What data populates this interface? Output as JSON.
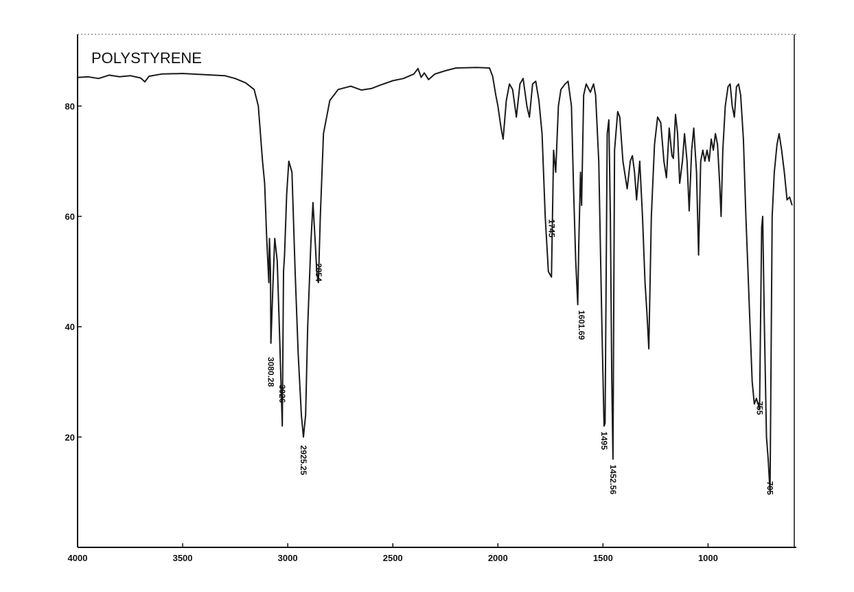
{
  "chart_data": {
    "type": "line",
    "title": "POLYSTYRENE",
    "xlabel": "",
    "ylabel": "",
    "x_reversed": true,
    "xlim": [
      4000,
      580
    ],
    "ylim": [
      0,
      93
    ],
    "grid": false,
    "x_ticks": [
      4000,
      3500,
      3000,
      2500,
      2000,
      1500,
      1000
    ],
    "x_tick_labels": [
      "4000",
      "3500",
      "3000",
      "2500",
      "2000",
      "1500",
      "1000"
    ],
    "y_ticks": [
      20,
      40,
      60,
      80
    ],
    "y_tick_labels": [
      "20",
      "40",
      "60",
      "80"
    ],
    "series": [
      {
        "points": [
          [
            4000,
            85.2
          ],
          [
            3950,
            85.3
          ],
          [
            3900,
            85.0
          ],
          [
            3850,
            85.6
          ],
          [
            3800,
            85.3
          ],
          [
            3750,
            85.5
          ],
          [
            3700,
            85.1
          ],
          [
            3680,
            84.4
          ],
          [
            3660,
            85.4
          ],
          [
            3600,
            85.8
          ],
          [
            3500,
            85.9
          ],
          [
            3400,
            85.7
          ],
          [
            3300,
            85.5
          ],
          [
            3250,
            85.0
          ],
          [
            3200,
            84.2
          ],
          [
            3160,
            83.0
          ],
          [
            3140,
            80.0
          ],
          [
            3120,
            70.0
          ],
          [
            3110,
            66.0
          ],
          [
            3100,
            56.0
          ],
          [
            3090,
            48.0
          ],
          [
            3087,
            56.0
          ],
          [
            3082,
            50.0
          ],
          [
            3080.28,
            37.0
          ],
          [
            3070,
            48.0
          ],
          [
            3062,
            56.0
          ],
          [
            3050,
            52.0
          ],
          [
            3040,
            40.0
          ],
          [
            3026,
            22.0
          ],
          [
            3020,
            50.0
          ],
          [
            3015,
            53.0
          ],
          [
            3005,
            64.0
          ],
          [
            2995,
            70.0
          ],
          [
            2980,
            68.0
          ],
          [
            2965,
            50.0
          ],
          [
            2950,
            35.0
          ],
          [
            2935,
            24.0
          ],
          [
            2925.25,
            20.0
          ],
          [
            2915,
            24.0
          ],
          [
            2905,
            40.0
          ],
          [
            2890,
            55.0
          ],
          [
            2880,
            62.5
          ],
          [
            2870,
            56.0
          ],
          [
            2862,
            50.0
          ],
          [
            2854,
            48.0
          ],
          [
            2845,
            60.0
          ],
          [
            2830,
            75.0
          ],
          [
            2800,
            81.0
          ],
          [
            2760,
            83.0
          ],
          [
            2700,
            83.6
          ],
          [
            2650,
            82.9
          ],
          [
            2600,
            83.2
          ],
          [
            2560,
            83.8
          ],
          [
            2500,
            84.6
          ],
          [
            2450,
            85.0
          ],
          [
            2400,
            85.8
          ],
          [
            2380,
            86.8
          ],
          [
            2365,
            85.2
          ],
          [
            2350,
            86.0
          ],
          [
            2330,
            84.8
          ],
          [
            2300,
            85.8
          ],
          [
            2250,
            86.4
          ],
          [
            2200,
            86.9
          ],
          [
            2100,
            87.0
          ],
          [
            2040,
            86.9
          ],
          [
            2025,
            85.4
          ],
          [
            2010,
            82.0
          ],
          [
            2000,
            80.0
          ],
          [
            1985,
            76.0
          ],
          [
            1975,
            74.0
          ],
          [
            1960,
            81.0
          ],
          [
            1945,
            84.0
          ],
          [
            1930,
            83.0
          ],
          [
            1912,
            78.0
          ],
          [
            1895,
            84.0
          ],
          [
            1880,
            85.0
          ],
          [
            1862,
            80.0
          ],
          [
            1850,
            78.0
          ],
          [
            1835,
            84.0
          ],
          [
            1820,
            84.5
          ],
          [
            1805,
            81.0
          ],
          [
            1790,
            75.0
          ],
          [
            1775,
            60.0
          ],
          [
            1760,
            50.0
          ],
          [
            1745,
            49.0
          ],
          [
            1735,
            72.0
          ],
          [
            1725,
            68.0
          ],
          [
            1712,
            80.0
          ],
          [
            1700,
            83.0
          ],
          [
            1680,
            84.0
          ],
          [
            1666,
            84.5
          ],
          [
            1650,
            80.0
          ],
          [
            1640,
            65.0
          ],
          [
            1630,
            52.0
          ],
          [
            1620,
            44.0
          ],
          [
            1615,
            55.0
          ],
          [
            1607,
            68.0
          ],
          [
            1601.69,
            62.0
          ],
          [
            1592,
            82.0
          ],
          [
            1580,
            84.0
          ],
          [
            1560,
            82.5
          ],
          [
            1545,
            84.0
          ],
          [
            1535,
            82.0
          ],
          [
            1520,
            70.0
          ],
          [
            1505,
            40.0
          ],
          [
            1495,
            22.0
          ],
          [
            1490,
            22.5
          ],
          [
            1480,
            75.0
          ],
          [
            1472,
            77.5
          ],
          [
            1465,
            60.0
          ],
          [
            1458,
            30.0
          ],
          [
            1452.56,
            16.0
          ],
          [
            1445,
            72.0
          ],
          [
            1430,
            79.0
          ],
          [
            1420,
            78.0
          ],
          [
            1405,
            70.0
          ],
          [
            1385,
            65.0
          ],
          [
            1370,
            70.0
          ],
          [
            1360,
            71.0
          ],
          [
            1350,
            68.0
          ],
          [
            1340,
            63.0
          ],
          [
            1325,
            70.0
          ],
          [
            1312,
            60.0
          ],
          [
            1300,
            48.0
          ],
          [
            1290,
            42.0
          ],
          [
            1282,
            36.0
          ],
          [
            1270,
            60.0
          ],
          [
            1255,
            73.0
          ],
          [
            1240,
            78.0
          ],
          [
            1225,
            77.0
          ],
          [
            1210,
            70.0
          ],
          [
            1198,
            67.0
          ],
          [
            1185,
            76.0
          ],
          [
            1172,
            71.0
          ],
          [
            1165,
            70.5
          ],
          [
            1155,
            78.5
          ],
          [
            1145,
            75.0
          ],
          [
            1135,
            66.0
          ],
          [
            1122,
            70.0
          ],
          [
            1112,
            75.0
          ],
          [
            1100,
            70.0
          ],
          [
            1090,
            61.0
          ],
          [
            1078,
            72.0
          ],
          [
            1068,
            76.0
          ],
          [
            1055,
            68.0
          ],
          [
            1045,
            53.0
          ],
          [
            1035,
            70.0
          ],
          [
            1025,
            72.0
          ],
          [
            1015,
            70.0
          ],
          [
            1005,
            72.0
          ],
          [
            995,
            70.0
          ],
          [
            985,
            74.0
          ],
          [
            975,
            72.0
          ],
          [
            965,
            75.0
          ],
          [
            955,
            73.0
          ],
          [
            945,
            66.0
          ],
          [
            938,
            60.0
          ],
          [
            930,
            72.0
          ],
          [
            918,
            80.0
          ],
          [
            905,
            83.5
          ],
          [
            895,
            84.0
          ],
          [
            885,
            80.0
          ],
          [
            875,
            78.0
          ],
          [
            865,
            83.5
          ],
          [
            855,
            84.0
          ],
          [
            845,
            82.0
          ],
          [
            832,
            74.0
          ],
          [
            820,
            60.0
          ],
          [
            810,
            50.0
          ],
          [
            800,
            40.0
          ],
          [
            790,
            30.0
          ],
          [
            780,
            26.0
          ],
          [
            770,
            27.0
          ],
          [
            762,
            26.0
          ],
          [
            755,
            25.0
          ],
          [
            745,
            58.0
          ],
          [
            740,
            60.0
          ],
          [
            732,
            40.0
          ],
          [
            722,
            20.0
          ],
          [
            714,
            16.0
          ],
          [
            705,
            10.0
          ],
          [
            695,
            60.0
          ],
          [
            685,
            68.0
          ],
          [
            672,
            73.0
          ],
          [
            662,
            75.0
          ],
          [
            650,
            72.0
          ],
          [
            637,
            68.0
          ],
          [
            624,
            63.0
          ],
          [
            612,
            63.5
          ],
          [
            600,
            62.0
          ]
        ]
      }
    ],
    "peak_labels": [
      {
        "x": 3080.28,
        "y": 35.0,
        "text": "3080.28"
      },
      {
        "x": 3026,
        "y": 30.0,
        "text": "3026"
      },
      {
        "x": 2925.25,
        "y": 19.0,
        "text": "2925.25"
      },
      {
        "x": 2854,
        "y": 52.0,
        "text": "2854"
      },
      {
        "x": 1745,
        "y": 60.0,
        "text": "1745"
      },
      {
        "x": 1601.69,
        "y": 43.5,
        "text": "1601.69"
      },
      {
        "x": 1495,
        "y": 21.5,
        "text": "1495"
      },
      {
        "x": 1452.56,
        "y": 15.5,
        "text": "1452.56"
      },
      {
        "x": 755,
        "y": 27.0,
        "text": "755"
      },
      {
        "x": 705,
        "y": 12.5,
        "text": "705"
      }
    ]
  }
}
